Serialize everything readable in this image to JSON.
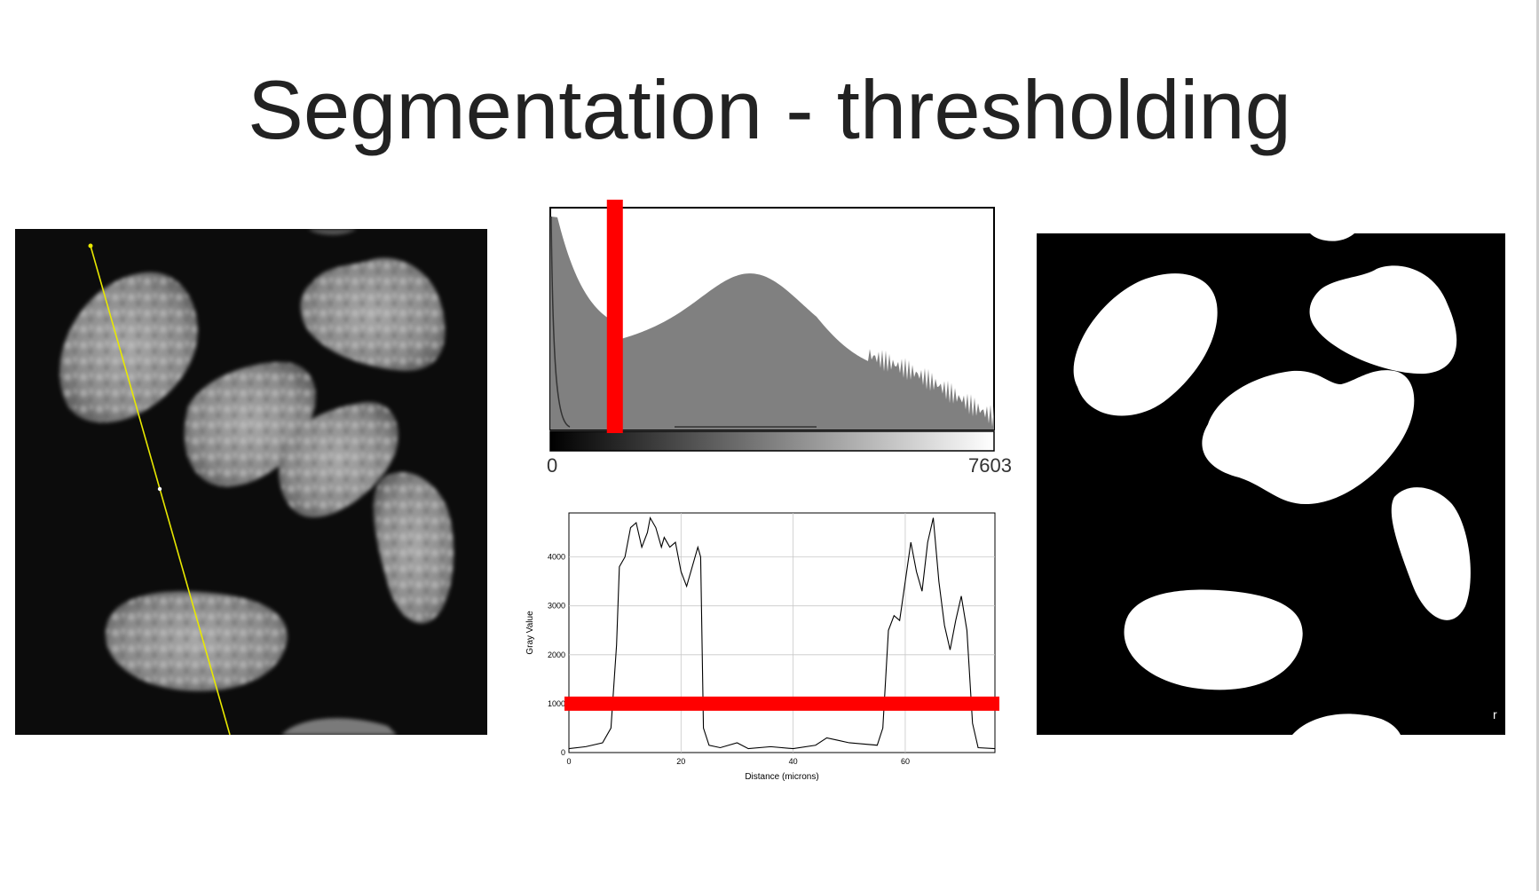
{
  "slide": {
    "title": "Segmentation - thresholding"
  },
  "histogram": {
    "min_label": "0",
    "max_label": "7603",
    "threshold_value": 1000,
    "max_value": 7603
  },
  "profile": {
    "ylabel": "Gray Value",
    "xlabel": "Distance (microns)",
    "y_ticks": [
      "0",
      "1000",
      "2000",
      "3000",
      "4000"
    ],
    "x_ticks": [
      "0",
      "20",
      "40",
      "60"
    ],
    "threshold_value": 1000
  },
  "colors": {
    "threshold": "#ff0000",
    "histogram_fill": "#808080",
    "line_scan": "#e8e800"
  }
}
